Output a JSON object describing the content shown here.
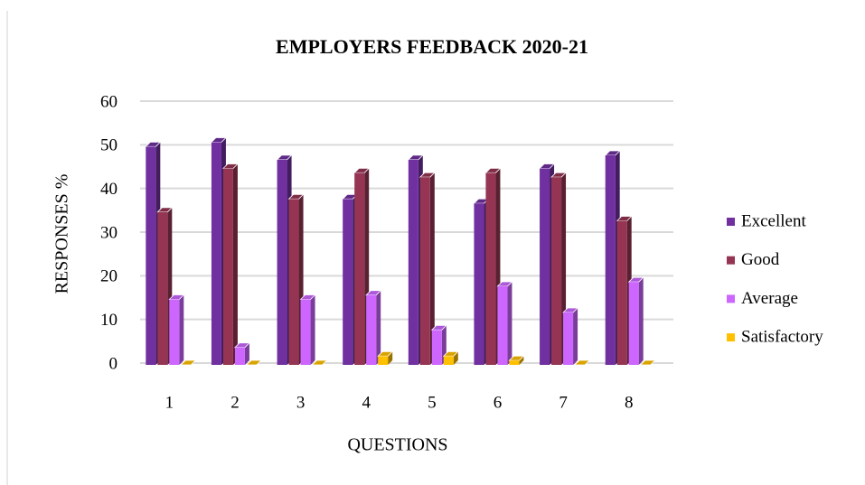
{
  "chart_data": {
    "type": "bar",
    "title": "EMPLOYERS FEEDBACK 2020-21",
    "x_label": "QUESTIONS",
    "y_label": "RESPONSES %",
    "categories": [
      "1",
      "2",
      "3",
      "4",
      "5",
      "6",
      "7",
      "8"
    ],
    "series": [
      {
        "name": "Excellent",
        "color": "#7030a0",
        "values": [
          50,
          51,
          47,
          38,
          47,
          37,
          45,
          48
        ]
      },
      {
        "name": "Good",
        "color": "#953553",
        "values": [
          35,
          45,
          38,
          44,
          43,
          44,
          43,
          33
        ]
      },
      {
        "name": "Average",
        "color": "#cc66ff",
        "values": [
          15,
          4,
          15,
          16,
          8,
          18,
          12,
          19
        ]
      },
      {
        "name": "Satisfactory",
        "color": "#ffc000",
        "values": [
          0,
          0,
          0,
          2,
          2,
          1,
          0,
          0
        ]
      }
    ],
    "ylim": [
      0,
      60
    ],
    "yticks": [
      0,
      10,
      20,
      30,
      40,
      50,
      60
    ],
    "grid": true,
    "legend": "right"
  }
}
